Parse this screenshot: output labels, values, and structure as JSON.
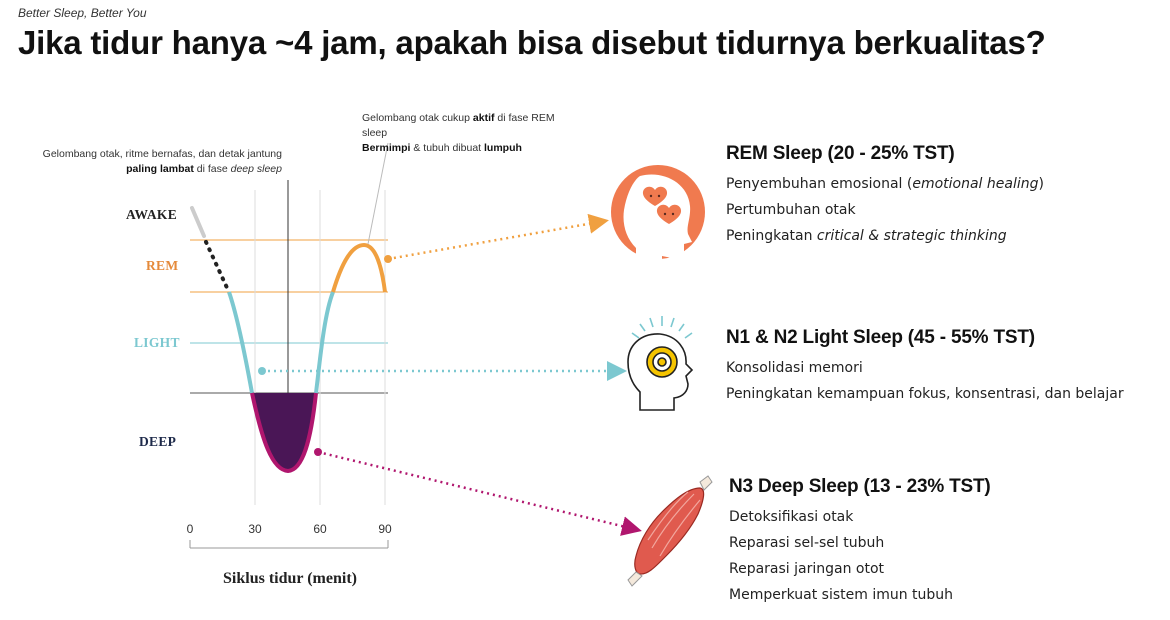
{
  "header": {
    "tagline": "Better Sleep, Better You",
    "title": "Jika tidur hanya ~4 jam, apakah bisa disebut tidurnya berkualitas?"
  },
  "annotations": {
    "rem_note": {
      "line1": "Gelombang otak cukup ",
      "bold1": "aktif",
      "line1_tail": " di fase REM sleep",
      "bold2": "Bermimpi",
      "line2_mid": " & tubuh dibuat ",
      "bold3": "lumpuh"
    },
    "deep_note": {
      "line1": "Gelombang otak, ritme bernafas, dan detak jantung",
      "bold1": "paling lambat",
      "line2_tail": " di fase ",
      "italic1": "deep sleep"
    }
  },
  "stages": {
    "awake": "AWAKE",
    "rem": "REM",
    "light": "LIGHT",
    "deep": "DEEP"
  },
  "axis": {
    "ticks": [
      "0",
      "30",
      "60",
      "90"
    ],
    "xlabel": "Siklus tidur (menit)"
  },
  "colors": {
    "rem": "#F0A040",
    "light": "#7CC8D0",
    "deep": "#B0166E",
    "deep_fill": "#4A1656",
    "awake_stage": "#222222",
    "rem_stage": "#E58A3A",
    "light_stage": "#7CC8D0",
    "deep_stage": "#1E2A4A"
  },
  "panels": {
    "rem": {
      "title": "REM Sleep (20 - 25% TST)",
      "items": [
        {
          "pre": "Penyembuhan emosional (",
          "it": "emotional healing",
          "post": ")"
        },
        {
          "pre": "Pertumbuhan otak",
          "it": "",
          "post": ""
        },
        {
          "pre": "Peningkatan ",
          "it": "critical & strategic thinking",
          "post": ""
        }
      ],
      "icon": "head-hearts-icon"
    },
    "light": {
      "title": "N1 & N2 Light Sleep (45 - 55% TST)",
      "items": [
        "Konsolidasi memori",
        "Peningkatan kemampuan fokus, konsentrasi, dan belajar"
      ],
      "icon": "head-gear-icon"
    },
    "deep": {
      "title": "N3 Deep Sleep (13 - 23% TST)",
      "items": [
        "Detoksifikasi otak",
        "Reparasi sel-sel tubuh",
        "Reparasi jaringan otot",
        "Memperkuat sistem imun tubuh"
      ],
      "icon": "muscle-icon"
    }
  }
}
